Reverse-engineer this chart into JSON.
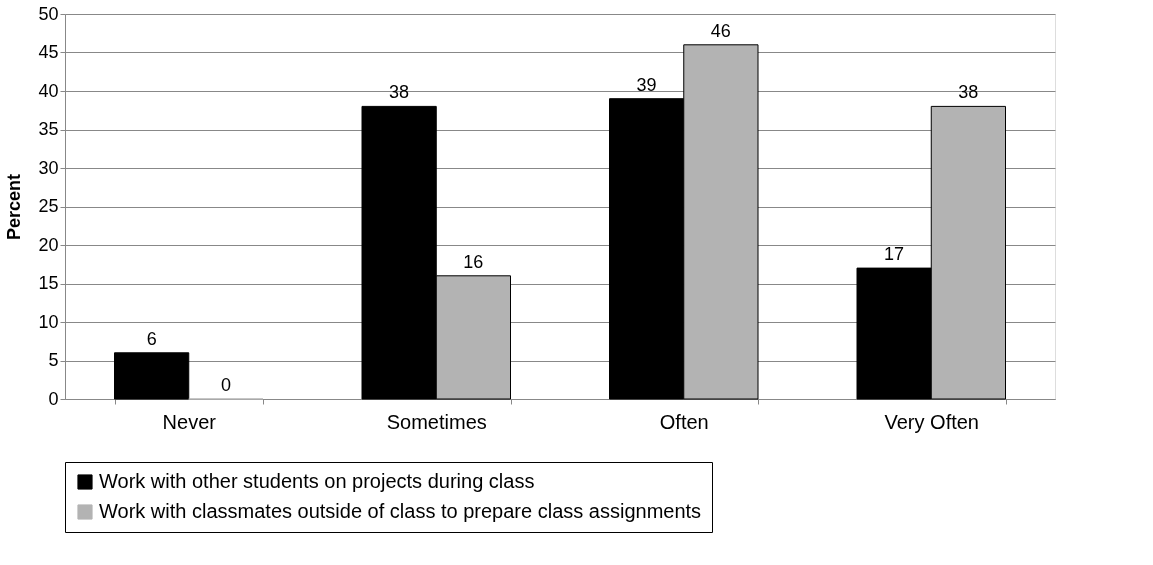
{
  "chart_data": {
    "type": "bar",
    "ylabel": "Percent",
    "categories": [
      "Never",
      "Sometimes",
      "Often",
      "Very Often"
    ],
    "series": [
      {
        "name": "Work with other students on projects during class",
        "color": "#000000",
        "values": [
          6,
          38,
          39,
          17
        ]
      },
      {
        "name": "Work with classmates outside of class to prepare class assignments",
        "color": "#b3b3b3",
        "values": [
          0,
          16,
          46,
          38
        ]
      }
    ],
    "ylim": [
      0,
      50
    ],
    "yticks": [
      0,
      5,
      10,
      15,
      20,
      25,
      30,
      35,
      40,
      45,
      50
    ],
    "grid": "y",
    "legend": "bottom",
    "data_labels": true
  }
}
